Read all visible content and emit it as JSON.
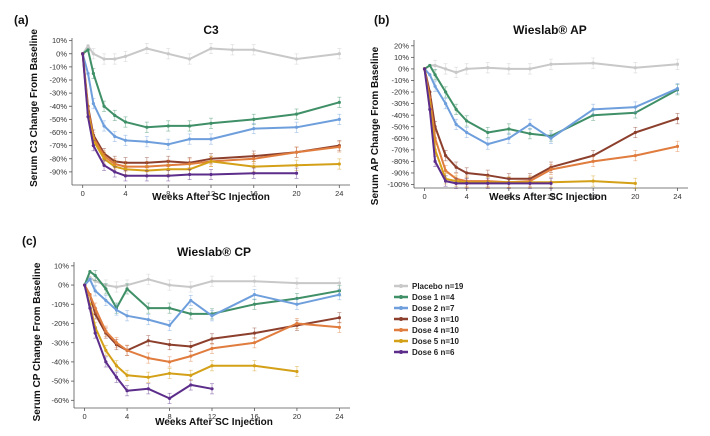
{
  "figure": {
    "legend": [
      {
        "label": "Placebo n=19",
        "color": "#c8c8c8"
      },
      {
        "label": "Dose 1 n=4",
        "color": "#3f8f67"
      },
      {
        "label": "Dose 2 n=7",
        "color": "#6e9fdc"
      },
      {
        "label": "Dose 3 n=10",
        "color": "#8c3f2c"
      },
      {
        "label": "Dose 4 n=10",
        "color": "#e07c3e"
      },
      {
        "label": "Dose 5 n=10",
        "color": "#d4a017"
      },
      {
        "label": "Dose 6 n=6",
        "color": "#5c2d8a"
      }
    ]
  },
  "chart_data": [
    {
      "panel": "(a)",
      "type": "line",
      "title": "C3",
      "xlabel": "Weeks After SC Injection",
      "ylabel": "Serum C3 Change From Baseline",
      "xlim": [
        -1,
        25
      ],
      "ylim": [
        -100,
        12
      ],
      "xticks": [
        0,
        4,
        8,
        12,
        16,
        20,
        24
      ],
      "yticks": [
        10,
        0,
        -10,
        -20,
        -30,
        -40,
        -50,
        -60,
        -70,
        -80,
        -90
      ],
      "ytick_labels": [
        "10%",
        "0%",
        "-10%",
        "-20%",
        "-30%",
        "-40%",
        "-50%",
        "-60%",
        "-70%",
        "-80%",
        "-90%"
      ],
      "series": [
        {
          "name": "Placebo n=19",
          "x": [
            0,
            0.5,
            1,
            2,
            3,
            4,
            6,
            8,
            10,
            12,
            14,
            16,
            20,
            24
          ],
          "y": [
            0,
            6,
            0,
            -4,
            -4,
            -2,
            4,
            0,
            -4,
            4,
            3,
            3,
            -4,
            0
          ]
        },
        {
          "name": "Dose 1 n=4",
          "x": [
            0,
            0.5,
            1,
            2,
            3,
            4,
            6,
            8,
            10,
            12,
            16,
            20,
            24
          ],
          "y": [
            0,
            3,
            -15,
            -40,
            -47,
            -52,
            -56,
            -55,
            -55,
            -53,
            -50,
            -46,
            -37
          ]
        },
        {
          "name": "Dose 2 n=7",
          "x": [
            0,
            0.5,
            1,
            2,
            3,
            4,
            6,
            8,
            10,
            12,
            16,
            20,
            24
          ],
          "y": [
            0,
            -15,
            -38,
            -55,
            -63,
            -66,
            -67,
            -69,
            -65,
            -65,
            -57,
            -56,
            -50
          ]
        },
        {
          "name": "Dose 3 n=10",
          "x": [
            0,
            0.5,
            1,
            2,
            3,
            4,
            6,
            8,
            10,
            12,
            16,
            20,
            24
          ],
          "y": [
            0,
            -40,
            -62,
            -76,
            -82,
            -83,
            -83,
            -82,
            -83,
            -80,
            -78,
            -75,
            -70
          ]
        },
        {
          "name": "Dose 4 n=10",
          "x": [
            0,
            0.5,
            1,
            2,
            3,
            4,
            6,
            8,
            10,
            12,
            16,
            20,
            24
          ],
          "y": [
            0,
            -42,
            -64,
            -78,
            -84,
            -86,
            -86,
            -85,
            -84,
            -82,
            -80,
            -75,
            -71
          ]
        },
        {
          "name": "Dose 5 n=10",
          "x": [
            0,
            0.5,
            1,
            2,
            3,
            4,
            6,
            8,
            10,
            12,
            16,
            20,
            24
          ],
          "y": [
            0,
            -45,
            -66,
            -80,
            -86,
            -88,
            -89,
            -88,
            -88,
            -82,
            -86,
            -85,
            -84
          ]
        },
        {
          "name": "Dose 6 n=6",
          "x": [
            0,
            0.5,
            1,
            2,
            3,
            4,
            6,
            8,
            10,
            12,
            16,
            20
          ],
          "y": [
            0,
            -48,
            -70,
            -85,
            -90,
            -93,
            -93,
            -93,
            -92,
            -92,
            -91,
            -91
          ]
        }
      ]
    },
    {
      "panel": "(b)",
      "type": "line",
      "title": "Wieslab® AP",
      "xlabel": "Weeks After SC Injection",
      "ylabel": "Serum AP Change From Baseline",
      "xlim": [
        -1,
        25
      ],
      "ylim": [
        -103,
        25
      ],
      "xticks": [
        0,
        4,
        8,
        12,
        16,
        20,
        24
      ],
      "yticks": [
        20,
        10,
        0,
        -10,
        -20,
        -30,
        -40,
        -50,
        -60,
        -70,
        -80,
        -90,
        -100
      ],
      "ytick_labels": [
        "20%",
        "10%",
        "0%",
        "-10%",
        "-20%",
        "-30%",
        "-40%",
        "-50%",
        "-60%",
        "-70%",
        "-80%",
        "-90%",
        "-100%"
      ],
      "series": [
        {
          "name": "Placebo n=19",
          "x": [
            0,
            0.5,
            1,
            2,
            3,
            4,
            6,
            8,
            10,
            12,
            16,
            20,
            24
          ],
          "y": [
            0,
            3,
            3,
            0,
            -3,
            0,
            1,
            0,
            0,
            4,
            5,
            1,
            4
          ]
        },
        {
          "name": "Dose 1 n=4",
          "x": [
            0,
            0.5,
            1,
            2,
            3,
            4,
            6,
            8,
            10,
            12,
            16,
            20,
            24
          ],
          "y": [
            0,
            3,
            -5,
            -20,
            -35,
            -45,
            -55,
            -52,
            -56,
            -58,
            -40,
            -38,
            -18
          ]
        },
        {
          "name": "Dose 2 n=7",
          "x": [
            0,
            0.5,
            1,
            2,
            3,
            4,
            6,
            8,
            10,
            12,
            16,
            20,
            24
          ],
          "y": [
            0,
            -5,
            -15,
            -30,
            -48,
            -55,
            -65,
            -60,
            -48,
            -60,
            -35,
            -33,
            -17
          ]
        },
        {
          "name": "Dose 3 n=10",
          "x": [
            0,
            0.5,
            1,
            2,
            3,
            4,
            6,
            8,
            10,
            12,
            16,
            20,
            24
          ],
          "y": [
            0,
            -20,
            -50,
            -75,
            -85,
            -90,
            -92,
            -95,
            -95,
            -85,
            -75,
            -55,
            -43
          ]
        },
        {
          "name": "Dose 4 n=10",
          "x": [
            0,
            0.5,
            1,
            2,
            3,
            4,
            6,
            8,
            10,
            12,
            16,
            20,
            24
          ],
          "y": [
            0,
            -25,
            -60,
            -88,
            -95,
            -97,
            -97,
            -98,
            -97,
            -87,
            -80,
            -75,
            -67
          ]
        },
        {
          "name": "Dose 5 n=10",
          "x": [
            0,
            0.5,
            1,
            2,
            3,
            4,
            6,
            8,
            10,
            12,
            16,
            20
          ],
          "y": [
            0,
            -30,
            -70,
            -95,
            -97,
            -98,
            -98,
            -98,
            -98,
            -98,
            -97,
            -99
          ]
        },
        {
          "name": "Dose 6 n=6",
          "x": [
            0,
            0.5,
            1,
            2,
            3,
            4,
            6,
            8,
            10,
            12
          ],
          "y": [
            0,
            -35,
            -80,
            -97,
            -99,
            -99,
            -99,
            -99,
            -99,
            -99
          ]
        }
      ]
    },
    {
      "panel": "(c)",
      "type": "line",
      "title": "Wieslab® CP",
      "xlabel": "Weeks After SC Injection",
      "ylabel": "Serum CP Change From Baseline",
      "xlim": [
        -1,
        25
      ],
      "ylim": [
        -64,
        12
      ],
      "xticks": [
        0,
        4,
        8,
        12,
        16,
        20,
        24
      ],
      "yticks": [
        10,
        0,
        -10,
        -20,
        -30,
        -40,
        -50,
        -60
      ],
      "ytick_labels": [
        "10%",
        "0%",
        "-10%",
        "-20%",
        "-30%",
        "-40%",
        "-50%",
        "-60%"
      ],
      "series": [
        {
          "name": "Placebo n=19",
          "x": [
            0,
            0.5,
            1,
            2,
            3,
            4,
            6,
            8,
            10,
            12,
            16,
            20,
            24
          ],
          "y": [
            0,
            4,
            2,
            0,
            -1,
            0,
            3,
            0,
            -1,
            2,
            2,
            1,
            1
          ]
        },
        {
          "name": "Dose 1 n=4",
          "x": [
            0,
            0.5,
            1,
            2,
            3,
            4,
            6,
            8,
            10,
            12,
            16,
            20,
            24
          ],
          "y": [
            0,
            7,
            5,
            -2,
            -12,
            -2,
            -12,
            -12,
            -15,
            -15,
            -10,
            -7,
            -3
          ]
        },
        {
          "name": "Dose 2 n=7",
          "x": [
            0,
            0.5,
            1,
            2,
            3,
            4,
            6,
            8,
            10,
            12,
            16,
            20,
            24
          ],
          "y": [
            0,
            3,
            -3,
            -8,
            -13,
            -16,
            -18,
            -21,
            -8,
            -16,
            -5,
            -10,
            -5
          ]
        },
        {
          "name": "Dose 3 n=10",
          "x": [
            0,
            0.5,
            1,
            2,
            3,
            4,
            6,
            8,
            10,
            12,
            16,
            20,
            24
          ],
          "y": [
            0,
            -5,
            -15,
            -25,
            -31,
            -34,
            -29,
            -31,
            -32,
            -28,
            -25,
            -21,
            -17
          ]
        },
        {
          "name": "Dose 4 n=10",
          "x": [
            0,
            0.5,
            1,
            2,
            3,
            4,
            6,
            8,
            10,
            12,
            16,
            20,
            24
          ],
          "y": [
            0,
            -5,
            -12,
            -24,
            -30,
            -34,
            -38,
            -40,
            -37,
            -33,
            -30,
            -20,
            -22
          ]
        },
        {
          "name": "Dose 5 n=10",
          "x": [
            0,
            0.5,
            1,
            2,
            3,
            4,
            6,
            8,
            10,
            12,
            16,
            20
          ],
          "y": [
            0,
            -10,
            -22,
            -34,
            -42,
            -47,
            -48,
            -46,
            -47,
            -42,
            -42,
            -45
          ]
        },
        {
          "name": "Dose 6 n=6",
          "x": [
            0,
            0.5,
            1,
            2,
            3,
            4,
            6,
            8,
            10,
            12
          ],
          "y": [
            0,
            -12,
            -25,
            -40,
            -48,
            -55,
            -54,
            -59,
            -52,
            -54
          ]
        }
      ]
    }
  ]
}
